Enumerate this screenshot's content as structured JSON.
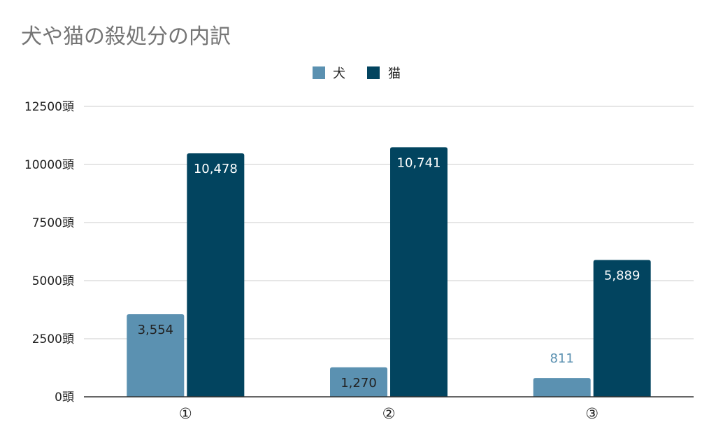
{
  "chart_data": {
    "type": "bar",
    "title": "犬や猫の殺処分の内訳",
    "categories": [
      "①",
      "②",
      "③"
    ],
    "series": [
      {
        "name": "犬",
        "values": [
          3554,
          1270,
          811
        ],
        "labels": [
          "3,554",
          "1,270",
          "811"
        ],
        "color": "#5b91b1"
      },
      {
        "name": "猫",
        "values": [
          10478,
          10741,
          5889
        ],
        "labels": [
          "10,478",
          "10,741",
          "5,889"
        ],
        "color": "#02445f"
      }
    ],
    "ylim": [
      0,
      12500
    ],
    "yticks": [
      0,
      2500,
      5000,
      7500,
      10000,
      12500
    ],
    "ytick_labels": [
      "0頭",
      "2500頭",
      "5000頭",
      "7500頭",
      "10000頭",
      "12500頭"
    ],
    "legend_position": "top",
    "grid": true,
    "xlabel": "",
    "ylabel": ""
  }
}
